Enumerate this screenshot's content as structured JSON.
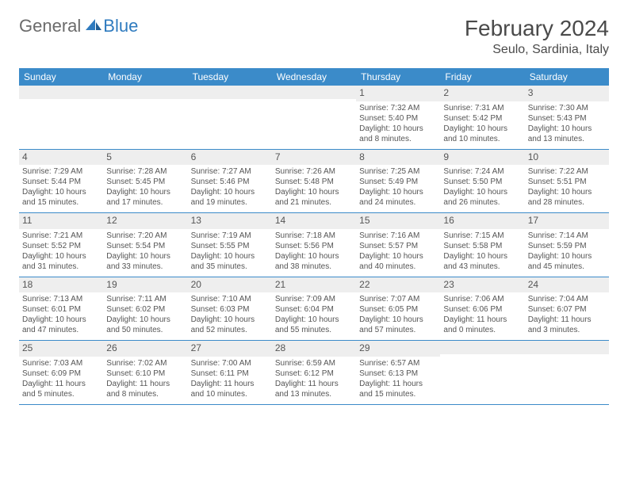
{
  "logo": {
    "general": "General",
    "blue": "Blue"
  },
  "title": "February 2024",
  "location": "Seulo, Sardinia, Italy",
  "colors": {
    "header_bg": "#3b8bc9",
    "header_text": "#ffffff",
    "daynum_bg": "#eeeeee",
    "text": "#555555",
    "logo_gray": "#6b6b6b",
    "logo_blue": "#2f7bbf",
    "rule": "#3b8bc9"
  },
  "dow": [
    "Sunday",
    "Monday",
    "Tuesday",
    "Wednesday",
    "Thursday",
    "Friday",
    "Saturday"
  ],
  "weeks": [
    [
      null,
      null,
      null,
      null,
      {
        "n": "1",
        "sr": "Sunrise: 7:32 AM",
        "ss": "Sunset: 5:40 PM",
        "d1": "Daylight: 10 hours",
        "d2": "and 8 minutes."
      },
      {
        "n": "2",
        "sr": "Sunrise: 7:31 AM",
        "ss": "Sunset: 5:42 PM",
        "d1": "Daylight: 10 hours",
        "d2": "and 10 minutes."
      },
      {
        "n": "3",
        "sr": "Sunrise: 7:30 AM",
        "ss": "Sunset: 5:43 PM",
        "d1": "Daylight: 10 hours",
        "d2": "and 13 minutes."
      }
    ],
    [
      {
        "n": "4",
        "sr": "Sunrise: 7:29 AM",
        "ss": "Sunset: 5:44 PM",
        "d1": "Daylight: 10 hours",
        "d2": "and 15 minutes."
      },
      {
        "n": "5",
        "sr": "Sunrise: 7:28 AM",
        "ss": "Sunset: 5:45 PM",
        "d1": "Daylight: 10 hours",
        "d2": "and 17 minutes."
      },
      {
        "n": "6",
        "sr": "Sunrise: 7:27 AM",
        "ss": "Sunset: 5:46 PM",
        "d1": "Daylight: 10 hours",
        "d2": "and 19 minutes."
      },
      {
        "n": "7",
        "sr": "Sunrise: 7:26 AM",
        "ss": "Sunset: 5:48 PM",
        "d1": "Daylight: 10 hours",
        "d2": "and 21 minutes."
      },
      {
        "n": "8",
        "sr": "Sunrise: 7:25 AM",
        "ss": "Sunset: 5:49 PM",
        "d1": "Daylight: 10 hours",
        "d2": "and 24 minutes."
      },
      {
        "n": "9",
        "sr": "Sunrise: 7:24 AM",
        "ss": "Sunset: 5:50 PM",
        "d1": "Daylight: 10 hours",
        "d2": "and 26 minutes."
      },
      {
        "n": "10",
        "sr": "Sunrise: 7:22 AM",
        "ss": "Sunset: 5:51 PM",
        "d1": "Daylight: 10 hours",
        "d2": "and 28 minutes."
      }
    ],
    [
      {
        "n": "11",
        "sr": "Sunrise: 7:21 AM",
        "ss": "Sunset: 5:52 PM",
        "d1": "Daylight: 10 hours",
        "d2": "and 31 minutes."
      },
      {
        "n": "12",
        "sr": "Sunrise: 7:20 AM",
        "ss": "Sunset: 5:54 PM",
        "d1": "Daylight: 10 hours",
        "d2": "and 33 minutes."
      },
      {
        "n": "13",
        "sr": "Sunrise: 7:19 AM",
        "ss": "Sunset: 5:55 PM",
        "d1": "Daylight: 10 hours",
        "d2": "and 35 minutes."
      },
      {
        "n": "14",
        "sr": "Sunrise: 7:18 AM",
        "ss": "Sunset: 5:56 PM",
        "d1": "Daylight: 10 hours",
        "d2": "and 38 minutes."
      },
      {
        "n": "15",
        "sr": "Sunrise: 7:16 AM",
        "ss": "Sunset: 5:57 PM",
        "d1": "Daylight: 10 hours",
        "d2": "and 40 minutes."
      },
      {
        "n": "16",
        "sr": "Sunrise: 7:15 AM",
        "ss": "Sunset: 5:58 PM",
        "d1": "Daylight: 10 hours",
        "d2": "and 43 minutes."
      },
      {
        "n": "17",
        "sr": "Sunrise: 7:14 AM",
        "ss": "Sunset: 5:59 PM",
        "d1": "Daylight: 10 hours",
        "d2": "and 45 minutes."
      }
    ],
    [
      {
        "n": "18",
        "sr": "Sunrise: 7:13 AM",
        "ss": "Sunset: 6:01 PM",
        "d1": "Daylight: 10 hours",
        "d2": "and 47 minutes."
      },
      {
        "n": "19",
        "sr": "Sunrise: 7:11 AM",
        "ss": "Sunset: 6:02 PM",
        "d1": "Daylight: 10 hours",
        "d2": "and 50 minutes."
      },
      {
        "n": "20",
        "sr": "Sunrise: 7:10 AM",
        "ss": "Sunset: 6:03 PM",
        "d1": "Daylight: 10 hours",
        "d2": "and 52 minutes."
      },
      {
        "n": "21",
        "sr": "Sunrise: 7:09 AM",
        "ss": "Sunset: 6:04 PM",
        "d1": "Daylight: 10 hours",
        "d2": "and 55 minutes."
      },
      {
        "n": "22",
        "sr": "Sunrise: 7:07 AM",
        "ss": "Sunset: 6:05 PM",
        "d1": "Daylight: 10 hours",
        "d2": "and 57 minutes."
      },
      {
        "n": "23",
        "sr": "Sunrise: 7:06 AM",
        "ss": "Sunset: 6:06 PM",
        "d1": "Daylight: 11 hours",
        "d2": "and 0 minutes."
      },
      {
        "n": "24",
        "sr": "Sunrise: 7:04 AM",
        "ss": "Sunset: 6:07 PM",
        "d1": "Daylight: 11 hours",
        "d2": "and 3 minutes."
      }
    ],
    [
      {
        "n": "25",
        "sr": "Sunrise: 7:03 AM",
        "ss": "Sunset: 6:09 PM",
        "d1": "Daylight: 11 hours",
        "d2": "and 5 minutes."
      },
      {
        "n": "26",
        "sr": "Sunrise: 7:02 AM",
        "ss": "Sunset: 6:10 PM",
        "d1": "Daylight: 11 hours",
        "d2": "and 8 minutes."
      },
      {
        "n": "27",
        "sr": "Sunrise: 7:00 AM",
        "ss": "Sunset: 6:11 PM",
        "d1": "Daylight: 11 hours",
        "d2": "and 10 minutes."
      },
      {
        "n": "28",
        "sr": "Sunrise: 6:59 AM",
        "ss": "Sunset: 6:12 PM",
        "d1": "Daylight: 11 hours",
        "d2": "and 13 minutes."
      },
      {
        "n": "29",
        "sr": "Sunrise: 6:57 AM",
        "ss": "Sunset: 6:13 PM",
        "d1": "Daylight: 11 hours",
        "d2": "and 15 minutes."
      },
      null,
      null
    ]
  ]
}
